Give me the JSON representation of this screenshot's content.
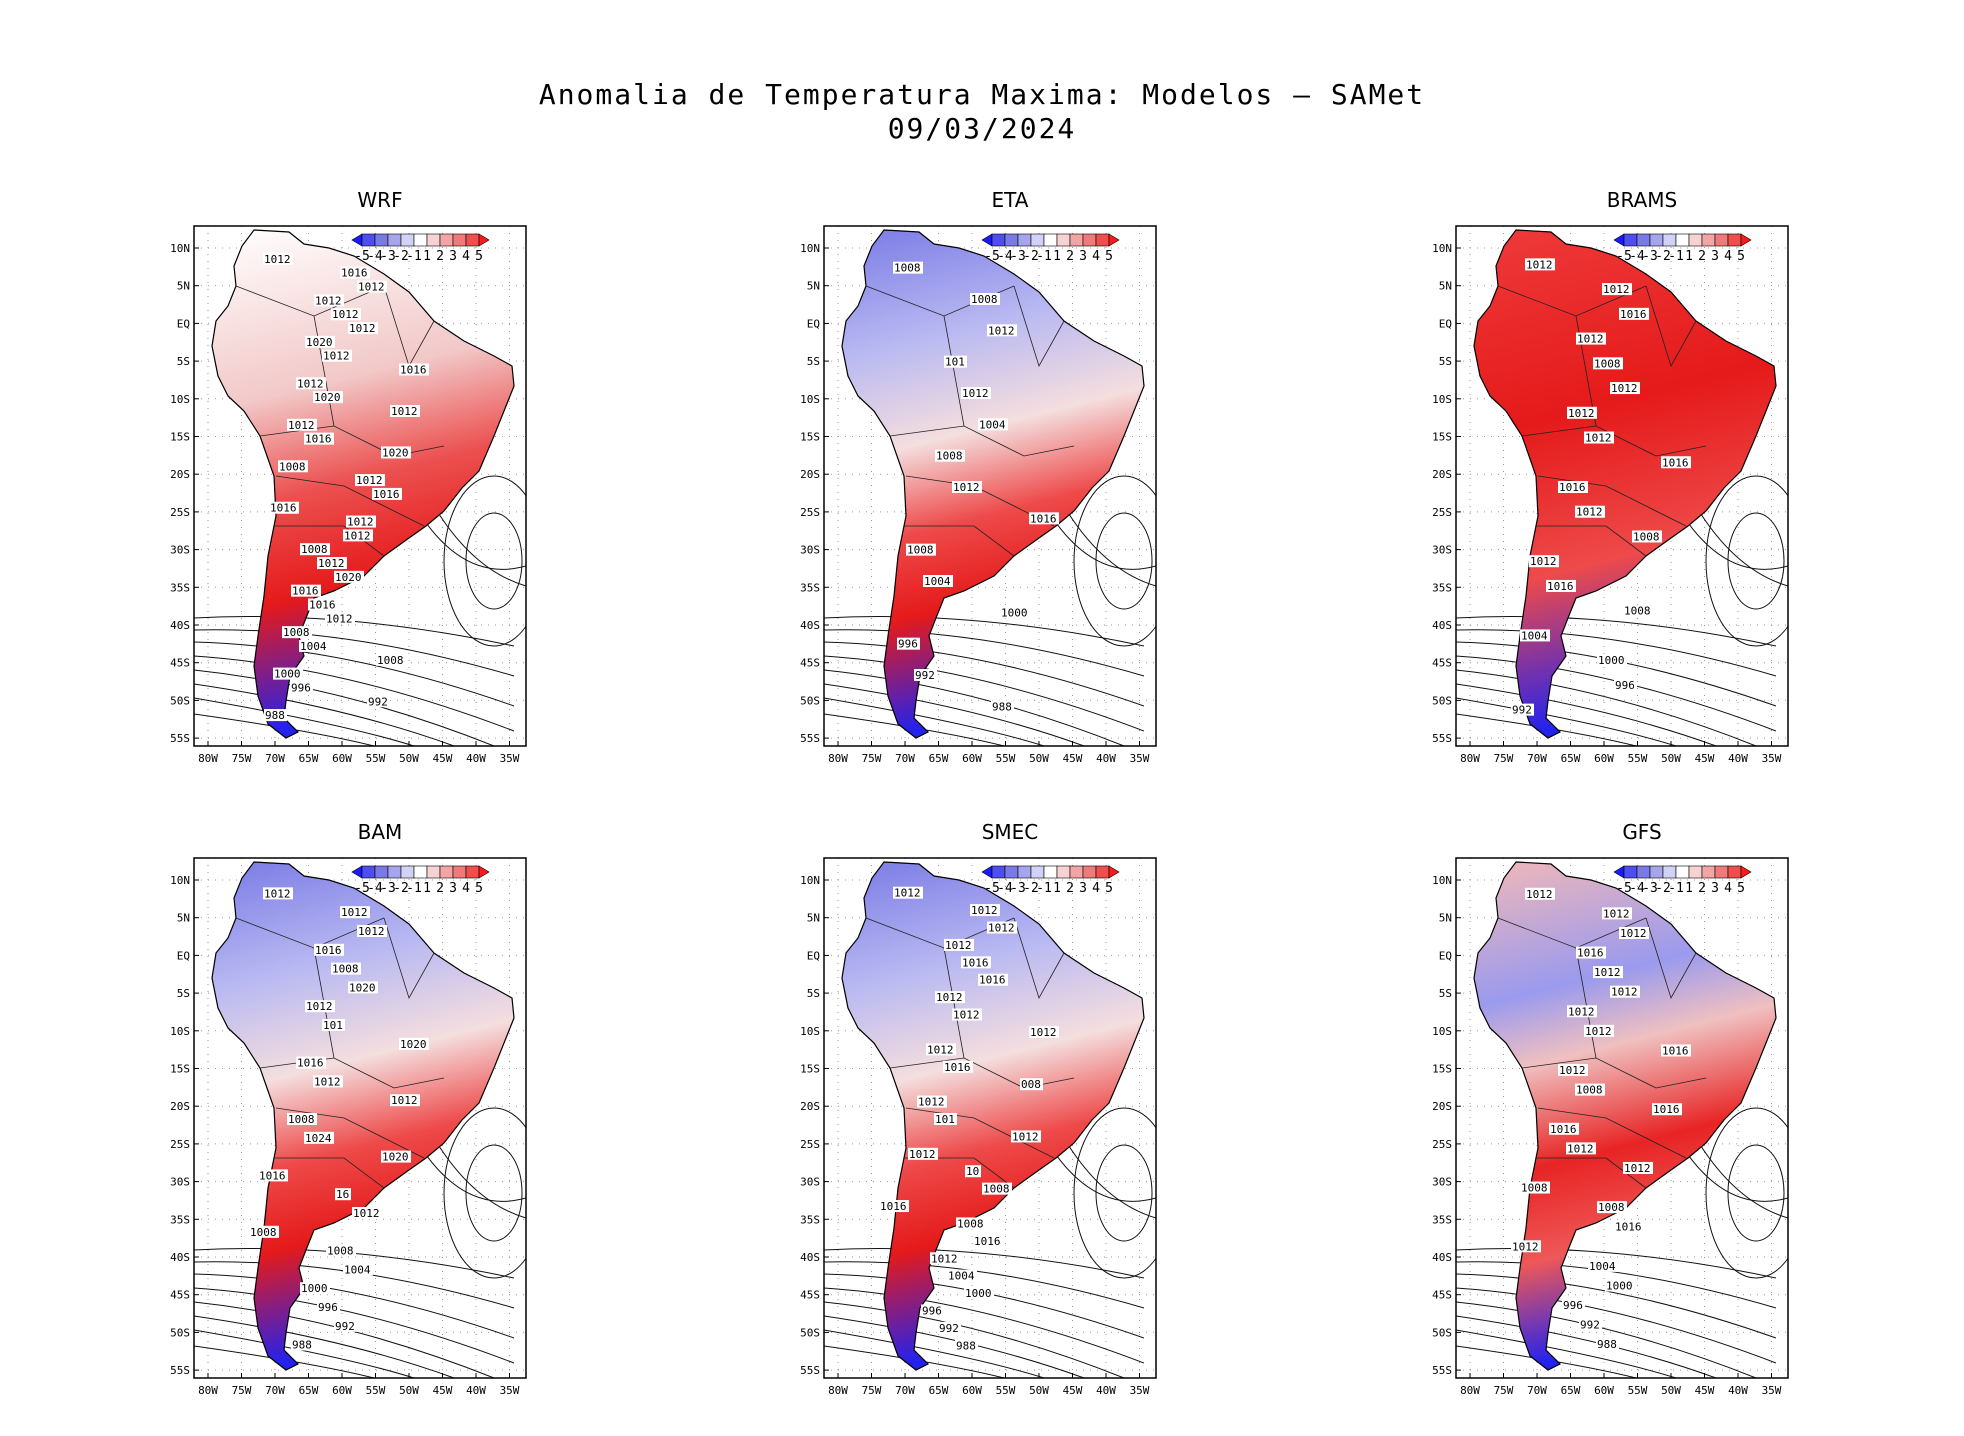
{
  "title_line1": "Anomalia de Temperatura Maxima: Modelos – SAMet",
  "title_line2": "09/03/2024",
  "lat_ticks": [
    "10N",
    "5N",
    "EQ",
    "5S",
    "10S",
    "15S",
    "20S",
    "25S",
    "30S",
    "35S",
    "40S",
    "45S",
    "50S",
    "55S"
  ],
  "lon_ticks": [
    "80W",
    "75W",
    "70W",
    "65W",
    "60W",
    "55W",
    "50W",
    "45W",
    "40W",
    "35W"
  ],
  "colorbar_labels": [
    "-5",
    "-4",
    "-3",
    "-2",
    "-1",
    "1",
    "2",
    "3",
    "4",
    "5"
  ],
  "colorbar_colors": [
    "#1a1aff",
    "#4d4df0",
    "#7a7ae6",
    "#a5a5ee",
    "#d2d2f7",
    "#ffffff",
    "#f7d2d2",
    "#f3a5a5",
    "#ee7a7a",
    "#f04d4d",
    "#ff1a1a"
  ],
  "panels": [
    {
      "name": "WRF",
      "anomaly": "warm-south",
      "isobars": [
        "1012",
        "1016",
        "1012",
        "1012",
        "1012",
        "1012",
        "1020",
        "1012",
        "1016",
        "1012",
        "1020",
        "1012",
        "1012",
        "1016",
        "1020",
        "1008",
        "1012",
        "1016",
        "1016",
        "1012",
        "1012",
        "1008",
        "1012",
        "1020",
        "1016",
        "1016",
        "1012",
        "1008",
        "1004",
        "1008",
        "1000",
        "996",
        "992",
        "988"
      ]
    },
    {
      "name": "ETA",
      "anomaly": "cool-north",
      "isobars": [
        "1008",
        "1008",
        "1012",
        "101",
        "1012",
        "1004",
        "1008",
        "1012",
        "1016",
        "1008",
        "1004",
        "1000",
        "996",
        "992",
        "988"
      ]
    },
    {
      "name": "BRAMS",
      "anomaly": "warm-all",
      "isobars": [
        "1012",
        "1012",
        "1016",
        "1012",
        "1008",
        "1012",
        "1012",
        "1012",
        "1016",
        "1016",
        "1012",
        "1008",
        "1012",
        "1016",
        "1008",
        "1004",
        "1000",
        "996",
        "992"
      ]
    },
    {
      "name": "BAM",
      "anomaly": "cool-north",
      "isobars": [
        "1012",
        "1012",
        "1012",
        "1016",
        "1008",
        "1020",
        "1012",
        "101",
        "1020",
        "1016",
        "1012",
        "1012",
        "1008",
        "1024",
        "1020",
        "1016",
        "16",
        "1012",
        "1008",
        "1008",
        "1004",
        "1000",
        "996",
        "992",
        "988"
      ]
    },
    {
      "name": "SMEC",
      "anomaly": "cool-north",
      "isobars": [
        "1012",
        "1012",
        "1012",
        "1012",
        "1016",
        "1016",
        "1012",
        "1012",
        "1012",
        "1012",
        "1016",
        "008",
        "1012",
        "101",
        "1012",
        "1012",
        "10",
        "1008",
        "1016",
        "1008",
        "1016",
        "1012",
        "1004",
        "1000",
        "996",
        "992",
        "988"
      ]
    },
    {
      "name": "GFS",
      "anomaly": "mixed",
      "isobars": [
        "1012",
        "1012",
        "1012",
        "1016",
        "1012",
        "1012",
        "1012",
        "1012",
        "1016",
        "1012",
        "1008",
        "1016",
        "1016",
        "1012",
        "1012",
        "1008",
        "1008",
        "1016",
        "1012",
        "1004",
        "1000",
        "996",
        "992",
        "988"
      ]
    }
  ]
}
